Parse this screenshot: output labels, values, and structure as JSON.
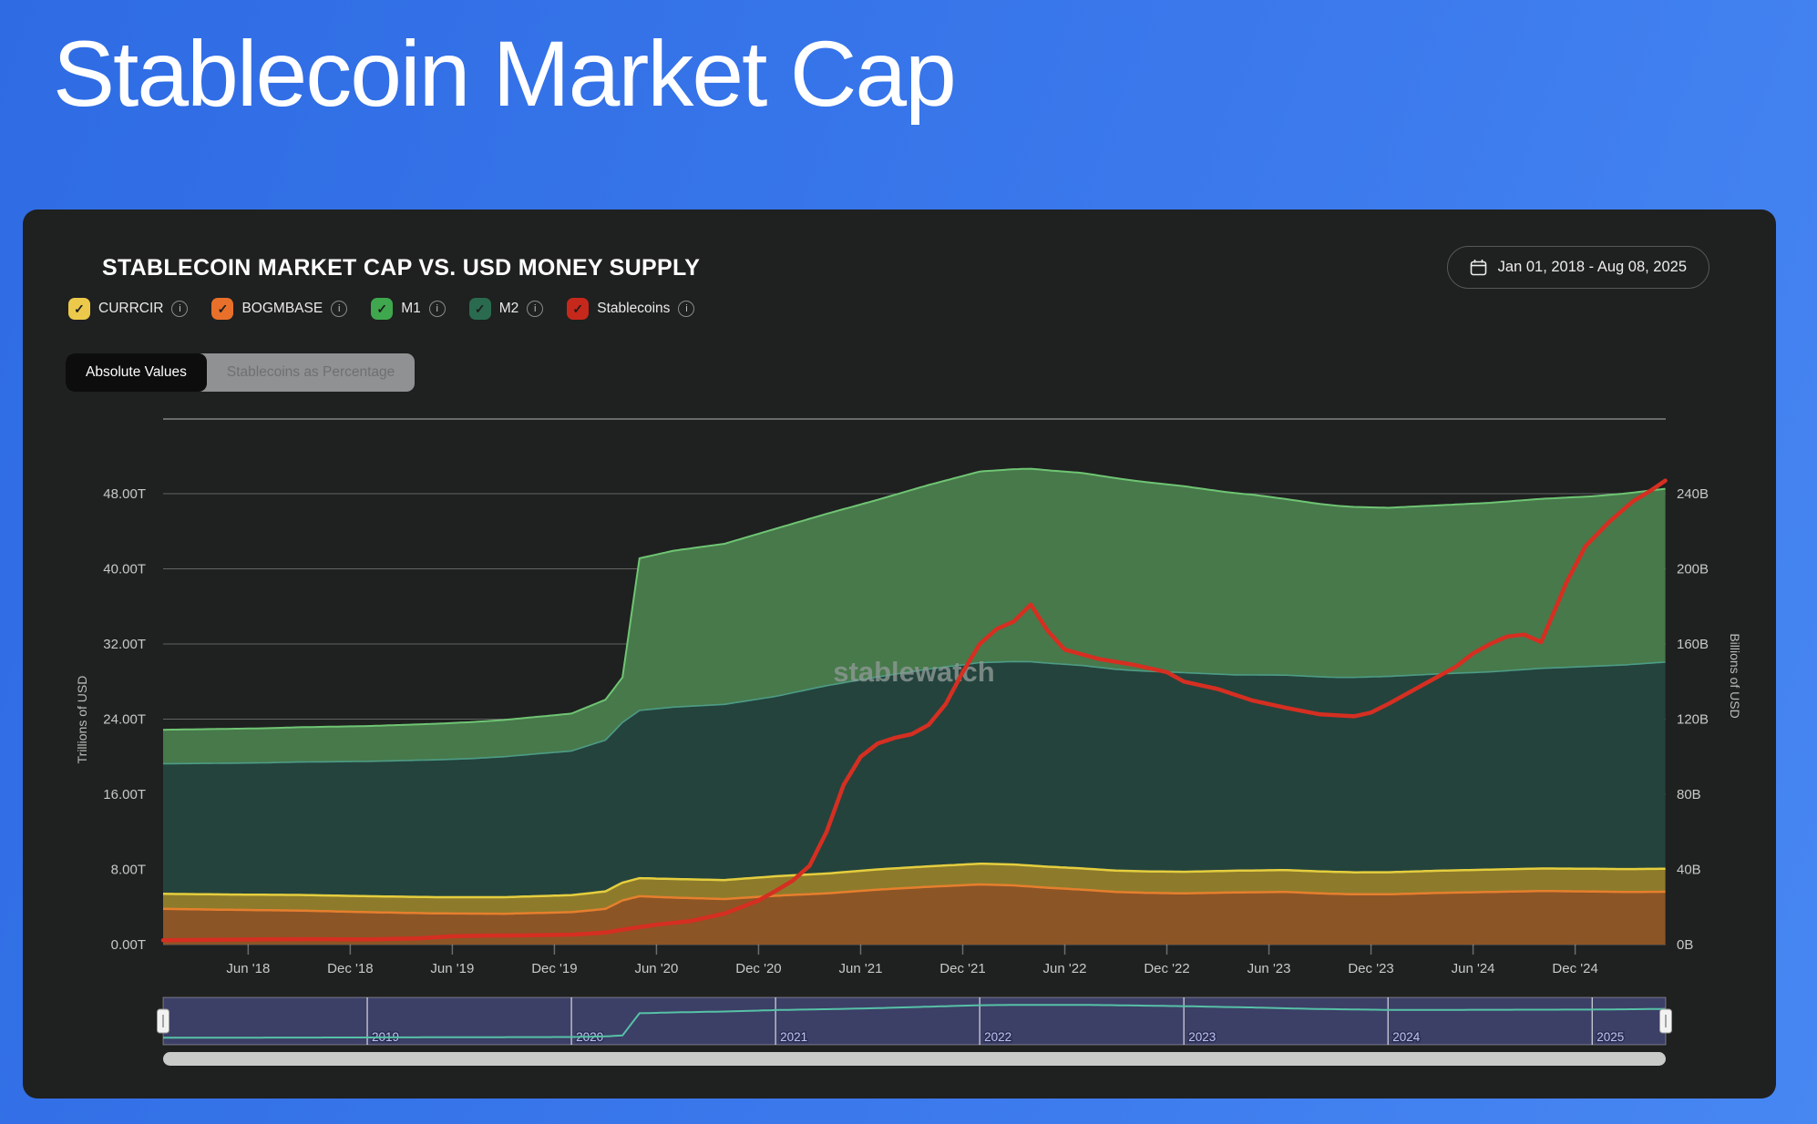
{
  "page": {
    "title": "Stablecoin Market Cap"
  },
  "icons": {
    "check": "✓",
    "info": "i"
  },
  "card": {
    "title": "STABLECOIN MARKET CAP VS. USD MONEY SUPPLY",
    "date_range": "Jan 01, 2018 - Aug 08, 2025",
    "watermark": "stablewatch",
    "toggle": {
      "active": "Absolute Values",
      "inactive": "Stablecoins as Percentage"
    },
    "legend": [
      {
        "label": "CURRCIR",
        "color": "#ecc94b"
      },
      {
        "label": "BOGMBASE",
        "color": "#e8702a"
      },
      {
        "label": "M1",
        "color": "#3fa74e"
      },
      {
        "label": "M2",
        "color": "#2a6b4f"
      },
      {
        "label": "Stablecoins",
        "color": "#c6281c"
      }
    ]
  },
  "chart_data": {
    "type": "area",
    "title": "Stablecoin market cap vs USD money supply, stacked money-supply areas (trillions USD, left axis) with stablecoin market cap line (billions USD, right axis)",
    "x_unit": "months since Jan 2018",
    "x_range_months": [
      0,
      88.3
    ],
    "x_ticks": [
      {
        "m": 5,
        "label": "Jun '18"
      },
      {
        "m": 11,
        "label": "Dec '18"
      },
      {
        "m": 17,
        "label": "Jun '19"
      },
      {
        "m": 23,
        "label": "Dec '19"
      },
      {
        "m": 29,
        "label": "Jun '20"
      },
      {
        "m": 35,
        "label": "Dec '20"
      },
      {
        "m": 41,
        "label": "Jun '21"
      },
      {
        "m": 47,
        "label": "Dec '21"
      },
      {
        "m": 53,
        "label": "Jun '22"
      },
      {
        "m": 59,
        "label": "Dec '22"
      },
      {
        "m": 65,
        "label": "Jun '23"
      },
      {
        "m": 71,
        "label": "Dec '23"
      },
      {
        "m": 77,
        "label": "Jun '24"
      },
      {
        "m": 83,
        "label": "Dec '24"
      }
    ],
    "y_left": {
      "title": "Trillions of USD",
      "ticks": [
        "48.00T",
        "40.00T",
        "32.00T",
        "24.00T",
        "16.00T",
        "8.00T",
        "0.00T"
      ],
      "tick_step": 8
    },
    "y_right": {
      "title": "Billions of USD",
      "ticks": [
        "240B",
        "200B",
        "160B",
        "120B",
        "80B",
        "40B",
        "0B"
      ],
      "tick_step": 40
    },
    "stacked_series": [
      {
        "name": "BOGMBASE",
        "unit": "T",
        "fill": "#8c5526",
        "edge": "#e67f2d",
        "edge_width": 2.5,
        "points": [
          [
            0,
            3.8
          ],
          [
            4,
            3.7
          ],
          [
            8,
            3.62
          ],
          [
            12,
            3.45
          ],
          [
            16,
            3.32
          ],
          [
            20,
            3.28
          ],
          [
            24,
            3.45
          ],
          [
            26,
            3.8
          ],
          [
            27,
            4.7
          ],
          [
            28,
            5.15
          ],
          [
            30,
            5.0
          ],
          [
            33,
            4.85
          ],
          [
            36,
            5.2
          ],
          [
            39,
            5.45
          ],
          [
            42,
            5.85
          ],
          [
            45,
            6.15
          ],
          [
            48,
            6.4
          ],
          [
            50,
            6.3
          ],
          [
            52,
            6.05
          ],
          [
            54,
            5.85
          ],
          [
            56,
            5.6
          ],
          [
            58,
            5.5
          ],
          [
            60,
            5.45
          ],
          [
            63,
            5.55
          ],
          [
            66,
            5.6
          ],
          [
            68,
            5.45
          ],
          [
            70,
            5.35
          ],
          [
            72,
            5.35
          ],
          [
            75,
            5.5
          ],
          [
            78,
            5.6
          ],
          [
            81,
            5.7
          ],
          [
            84,
            5.65
          ],
          [
            86,
            5.6
          ],
          [
            88.3,
            5.62
          ]
        ]
      },
      {
        "name": "CURRCIR",
        "unit": "T",
        "fill": "#8d7b2b",
        "edge": "#e5ce3e",
        "edge_width": 2.5,
        "points": [
          [
            0,
            1.6
          ],
          [
            6,
            1.64
          ],
          [
            12,
            1.7
          ],
          [
            18,
            1.74
          ],
          [
            24,
            1.81
          ],
          [
            27,
            1.89
          ],
          [
            30,
            1.98
          ],
          [
            33,
            2.02
          ],
          [
            36,
            2.07
          ],
          [
            42,
            2.15
          ],
          [
            48,
            2.21
          ],
          [
            54,
            2.26
          ],
          [
            60,
            2.3
          ],
          [
            66,
            2.33
          ],
          [
            72,
            2.35
          ],
          [
            78,
            2.38
          ],
          [
            84,
            2.42
          ],
          [
            88.3,
            2.45
          ]
        ]
      },
      {
        "name": "M2",
        "unit": "T",
        "fill": "#24433d",
        "edge": "#4d9c86",
        "edge_width": 1.6,
        "points": [
          [
            0,
            13.85
          ],
          [
            6,
            14.05
          ],
          [
            12,
            14.35
          ],
          [
            18,
            14.75
          ],
          [
            24,
            15.35
          ],
          [
            26,
            16.1
          ],
          [
            27,
            17.05
          ],
          [
            28,
            17.85
          ],
          [
            30,
            18.3
          ],
          [
            33,
            18.7
          ],
          [
            36,
            19.15
          ],
          [
            39,
            20.0
          ],
          [
            42,
            20.5
          ],
          [
            45,
            21.0
          ],
          [
            48,
            21.4
          ],
          [
            51,
            21.7
          ],
          [
            54,
            21.6
          ],
          [
            57,
            21.35
          ],
          [
            60,
            21.2
          ],
          [
            63,
            20.85
          ],
          [
            66,
            20.75
          ],
          [
            69,
            20.7
          ],
          [
            72,
            20.85
          ],
          [
            75,
            20.95
          ],
          [
            78,
            21.05
          ],
          [
            81,
            21.3
          ],
          [
            84,
            21.55
          ],
          [
            86,
            21.75
          ],
          [
            88.3,
            22.0
          ]
        ]
      },
      {
        "name": "M1",
        "unit": "T",
        "fill": "#47794b",
        "edge": "#6fc573",
        "edge_width": 2,
        "points": [
          [
            0,
            3.62
          ],
          [
            6,
            3.68
          ],
          [
            12,
            3.76
          ],
          [
            18,
            3.88
          ],
          [
            24,
            3.98
          ],
          [
            26,
            4.3
          ],
          [
            27,
            4.8
          ],
          [
            28,
            16.2
          ],
          [
            30,
            16.65
          ],
          [
            33,
            17.1
          ],
          [
            36,
            17.85
          ],
          [
            39,
            18.3
          ],
          [
            42,
            18.85
          ],
          [
            45,
            19.6
          ],
          [
            48,
            20.35
          ],
          [
            51,
            20.55
          ],
          [
            54,
            20.5
          ],
          [
            56,
            20.35
          ],
          [
            58,
            20.1
          ],
          [
            60,
            19.85
          ],
          [
            62,
            19.5
          ],
          [
            64,
            19.2
          ],
          [
            66,
            18.75
          ],
          [
            68,
            18.4
          ],
          [
            70,
            18.15
          ],
          [
            72,
            17.95
          ],
          [
            75,
            17.95
          ],
          [
            78,
            18.0
          ],
          [
            81,
            18.05
          ],
          [
            84,
            18.1
          ],
          [
            86,
            18.25
          ],
          [
            88.3,
            18.45
          ]
        ]
      }
    ],
    "line_series": {
      "name": "Stablecoins",
      "unit": "B",
      "color": "#d52f21",
      "width": 4.5,
      "points": [
        [
          0,
          2.3
        ],
        [
          3,
          2.5
        ],
        [
          6,
          2.8
        ],
        [
          9,
          2.85
        ],
        [
          12,
          2.7
        ],
        [
          15,
          3.3
        ],
        [
          17,
          4.4
        ],
        [
          19,
          4.8
        ],
        [
          21,
          4.85
        ],
        [
          24,
          5.3
        ],
        [
          25,
          5.8
        ],
        [
          26,
          6.4
        ],
        [
          27,
          7.9
        ],
        [
          28,
          9.3
        ],
        [
          29,
          10.6
        ],
        [
          31,
          12.5
        ],
        [
          33,
          16.5
        ],
        [
          34,
          20
        ],
        [
          35,
          23.5
        ],
        [
          36,
          28.5
        ],
        [
          37,
          34
        ],
        [
          38,
          42
        ],
        [
          39,
          60
        ],
        [
          40,
          85
        ],
        [
          41,
          100
        ],
        [
          42,
          107
        ],
        [
          43,
          110
        ],
        [
          44,
          112
        ],
        [
          45,
          117
        ],
        [
          46,
          128
        ],
        [
          47,
          145
        ],
        [
          48,
          160
        ],
        [
          49,
          168
        ],
        [
          50,
          172
        ],
        [
          51,
          181
        ],
        [
          52,
          167
        ],
        [
          53,
          157
        ],
        [
          55,
          152
        ],
        [
          57,
          149
        ],
        [
          59,
          145
        ],
        [
          60,
          140
        ],
        [
          62,
          136
        ],
        [
          64,
          130
        ],
        [
          66,
          126
        ],
        [
          68,
          122.5
        ],
        [
          70,
          121.5
        ],
        [
          71,
          123.5
        ],
        [
          72,
          128
        ],
        [
          74,
          138
        ],
        [
          75,
          143
        ],
        [
          76,
          148
        ],
        [
          77,
          155
        ],
        [
          78,
          160
        ],
        [
          79,
          164
        ],
        [
          80,
          165
        ],
        [
          81,
          161
        ],
        [
          81.8,
          178
        ],
        [
          82.5,
          193
        ],
        [
          83.6,
          212
        ],
        [
          85,
          225
        ],
        [
          86.4,
          236
        ],
        [
          87.5,
          242
        ],
        [
          88.3,
          247
        ]
      ]
    },
    "brush": {
      "mini_series": "M1",
      "year_lines_m": [
        12,
        24,
        36,
        48,
        60,
        72,
        84
      ],
      "year_labels": [
        "2019",
        "2020",
        "2021",
        "2022",
        "2023",
        "2024",
        "2025"
      ],
      "line_color": "#56c1a7",
      "track_color": "#3c3f66"
    }
  }
}
